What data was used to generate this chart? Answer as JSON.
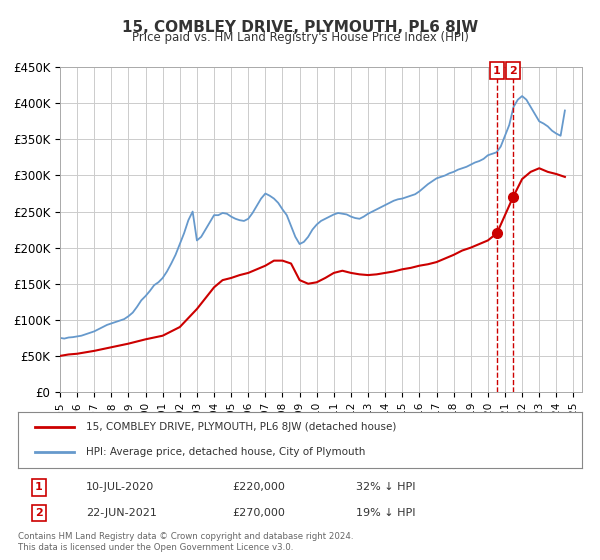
{
  "title": "15, COMBLEY DRIVE, PLYMOUTH, PL6 8JW",
  "subtitle": "Price paid vs. HM Land Registry's House Price Index (HPI)",
  "xlabel": "",
  "ylabel": "",
  "ylim": [
    0,
    450000
  ],
  "yticks": [
    0,
    50000,
    100000,
    150000,
    200000,
    250000,
    300000,
    350000,
    400000,
    450000
  ],
  "ytick_labels": [
    "£0",
    "£50K",
    "£100K",
    "£150K",
    "£200K",
    "£250K",
    "£300K",
    "£350K",
    "£400K",
    "£450K"
  ],
  "xlim_start": 1995.0,
  "xlim_end": 2025.5,
  "xtick_years": [
    1995,
    1996,
    1997,
    1998,
    1999,
    2000,
    2001,
    2002,
    2003,
    2004,
    2005,
    2006,
    2007,
    2008,
    2009,
    2010,
    2011,
    2012,
    2013,
    2014,
    2015,
    2016,
    2017,
    2018,
    2019,
    2020,
    2021,
    2022,
    2023,
    2024,
    2025
  ],
  "line1_color": "#cc0000",
  "line2_color": "#6699cc",
  "marker_color": "#cc0000",
  "vline_color": "#cc0000",
  "grid_color": "#cccccc",
  "bg_color": "#ffffff",
  "legend_box_color": "#000000",
  "legend_label1": "15, COMBLEY DRIVE, PLYMOUTH, PL6 8JW (detached house)",
  "legend_label2": "HPI: Average price, detached house, City of Plymouth",
  "annotation1_num": "1",
  "annotation1_date": "10-JUL-2020",
  "annotation1_price": "£220,000",
  "annotation1_pct": "32% ↓ HPI",
  "annotation2_num": "2",
  "annotation2_date": "22-JUN-2021",
  "annotation2_price": "£270,000",
  "annotation2_pct": "19% ↓ HPI",
  "vline1_x": 2020.53,
  "vline2_x": 2021.47,
  "marker1_x": 2020.53,
  "marker1_y": 220000,
  "marker2_x": 2021.47,
  "marker2_y": 270000,
  "footer": "Contains HM Land Registry data © Crown copyright and database right 2024.\nThis data is licensed under the Open Government Licence v3.0.",
  "hpi_data": {
    "x": [
      1995.0,
      1995.25,
      1995.5,
      1995.75,
      1996.0,
      1996.25,
      1996.5,
      1996.75,
      1997.0,
      1997.25,
      1997.5,
      1997.75,
      1998.0,
      1998.25,
      1998.5,
      1998.75,
      1999.0,
      1999.25,
      1999.5,
      1999.75,
      2000.0,
      2000.25,
      2000.5,
      2000.75,
      2001.0,
      2001.25,
      2001.5,
      2001.75,
      2002.0,
      2002.25,
      2002.5,
      2002.75,
      2003.0,
      2003.25,
      2003.5,
      2003.75,
      2004.0,
      2004.25,
      2004.5,
      2004.75,
      2005.0,
      2005.25,
      2005.5,
      2005.75,
      2006.0,
      2006.25,
      2006.5,
      2006.75,
      2007.0,
      2007.25,
      2007.5,
      2007.75,
      2008.0,
      2008.25,
      2008.5,
      2008.75,
      2009.0,
      2009.25,
      2009.5,
      2009.75,
      2010.0,
      2010.25,
      2010.5,
      2010.75,
      2011.0,
      2011.25,
      2011.5,
      2011.75,
      2012.0,
      2012.25,
      2012.5,
      2012.75,
      2013.0,
      2013.25,
      2013.5,
      2013.75,
      2014.0,
      2014.25,
      2014.5,
      2014.75,
      2015.0,
      2015.25,
      2015.5,
      2015.75,
      2016.0,
      2016.25,
      2016.5,
      2016.75,
      2017.0,
      2017.25,
      2017.5,
      2017.75,
      2018.0,
      2018.25,
      2018.5,
      2018.75,
      2019.0,
      2019.25,
      2019.5,
      2019.75,
      2020.0,
      2020.25,
      2020.5,
      2020.75,
      2021.0,
      2021.25,
      2021.5,
      2021.75,
      2022.0,
      2022.25,
      2022.5,
      2022.75,
      2023.0,
      2023.25,
      2023.5,
      2023.75,
      2024.0,
      2024.25,
      2024.5
    ],
    "y": [
      75000,
      74000,
      75500,
      76000,
      77000,
      78000,
      80000,
      82000,
      84000,
      87000,
      90000,
      93000,
      95000,
      97000,
      99000,
      101000,
      105000,
      110000,
      118000,
      127000,
      133000,
      140000,
      148000,
      152000,
      158000,
      167000,
      178000,
      190000,
      205000,
      220000,
      238000,
      250000,
      210000,
      215000,
      225000,
      235000,
      245000,
      245000,
      248000,
      247000,
      243000,
      240000,
      238000,
      237000,
      240000,
      248000,
      258000,
      268000,
      275000,
      272000,
      268000,
      262000,
      253000,
      245000,
      230000,
      215000,
      205000,
      208000,
      215000,
      225000,
      232000,
      237000,
      240000,
      243000,
      246000,
      248000,
      247000,
      246000,
      243000,
      241000,
      240000,
      243000,
      247000,
      250000,
      253000,
      256000,
      259000,
      262000,
      265000,
      267000,
      268000,
      270000,
      272000,
      274000,
      278000,
      283000,
      288000,
      292000,
      296000,
      298000,
      300000,
      303000,
      305000,
      308000,
      310000,
      312000,
      315000,
      318000,
      320000,
      323000,
      328000,
      330000,
      332000,
      340000,
      355000,
      370000,
      395000,
      405000,
      410000,
      405000,
      395000,
      385000,
      375000,
      372000,
      368000,
      362000,
      358000,
      355000,
      390000
    ]
  },
  "price_data": {
    "x": [
      1995.0,
      1995.5,
      1996.0,
      1997.0,
      1998.0,
      1999.0,
      2000.0,
      2001.0,
      2002.0,
      2003.0,
      2003.5,
      2004.0,
      2004.5,
      2005.0,
      2005.5,
      2006.0,
      2007.0,
      2007.5,
      2008.0,
      2008.5,
      2009.0,
      2009.5,
      2010.0,
      2010.5,
      2011.0,
      2011.5,
      2012.0,
      2012.5,
      2013.0,
      2013.5,
      2014.0,
      2014.5,
      2015.0,
      2015.5,
      2016.0,
      2016.5,
      2017.0,
      2017.5,
      2018.0,
      2018.5,
      2019.0,
      2019.5,
      2020.0,
      2020.53,
      2021.47,
      2022.0,
      2022.5,
      2023.0,
      2023.5,
      2024.0,
      2024.5
    ],
    "y": [
      50000,
      52000,
      53000,
      57000,
      62000,
      67000,
      73000,
      78000,
      90000,
      115000,
      130000,
      145000,
      155000,
      158000,
      162000,
      165000,
      175000,
      182000,
      182000,
      178000,
      155000,
      150000,
      152000,
      158000,
      165000,
      168000,
      165000,
      163000,
      162000,
      163000,
      165000,
      167000,
      170000,
      172000,
      175000,
      177000,
      180000,
      185000,
      190000,
      196000,
      200000,
      205000,
      210000,
      220000,
      270000,
      295000,
      305000,
      310000,
      305000,
      302000,
      298000
    ]
  }
}
